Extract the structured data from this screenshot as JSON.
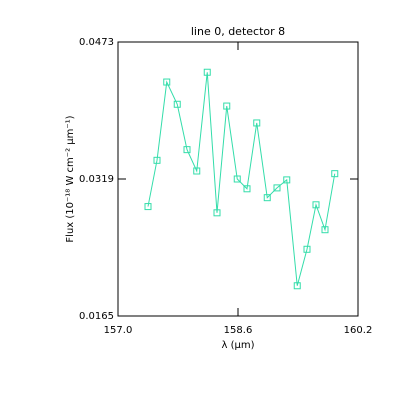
{
  "chart_data": {
    "type": "line",
    "title": "line 0, detector 8",
    "xlabel": "λ (μm)",
    "ylabel": "Flux (10⁻¹⁸ W cm⁻² μm⁻¹)",
    "xlim": [
      157.0,
      160.2
    ],
    "xticks": [
      {
        "value": 157.0,
        "label": "157.0"
      },
      158.6,
      160.2
    ],
    "ylim": [
      0.0165,
      0.0473
    ],
    "yticks": [
      0.0165,
      0.0319,
      0.0473
    ],
    "series": [
      {
        "color": "#33ddaa",
        "x": [
          157.4,
          157.52,
          157.65,
          157.79,
          157.92,
          158.05,
          158.19,
          158.32,
          158.45,
          158.59,
          158.72,
          158.85,
          158.99,
          159.12,
          159.25,
          159.39,
          159.52,
          159.64,
          159.76,
          159.89
        ],
        "values": [
          0.0288,
          0.034,
          0.0428,
          0.0403,
          0.0352,
          0.0328,
          0.0439,
          0.0281,
          0.0401,
          0.0319,
          0.0308,
          0.0382,
          0.0298,
          0.0309,
          0.0318,
          0.0199,
          0.024,
          0.029,
          0.0262,
          0.0325
        ]
      }
    ]
  }
}
